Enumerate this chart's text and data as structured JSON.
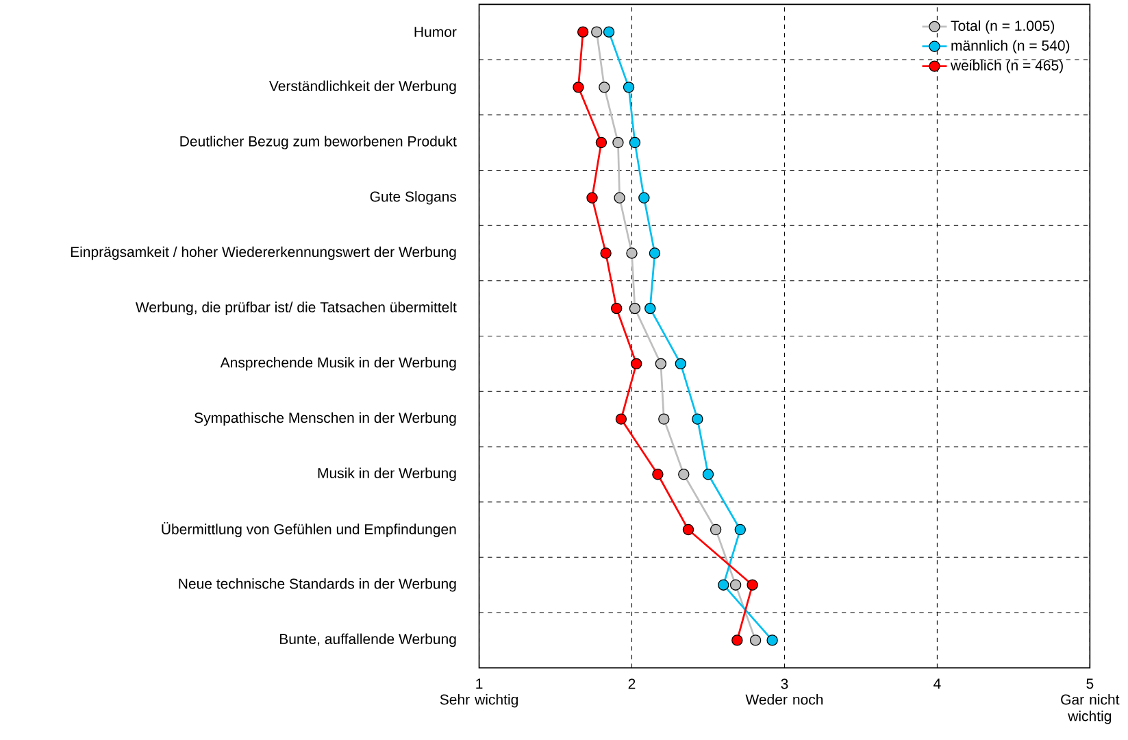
{
  "chart_data": {
    "type": "line",
    "orientation": "horizontal",
    "categories": [
      "Humor",
      "Verständlichkeit der Werbung",
      "Deutlicher Bezug zum beworbenen Produkt",
      "Gute Slogans",
      "Einprägsamkeit / hoher Wiedererkennungswert der Werbung",
      "Werbung, die prüfbar ist/ die Tatsachen übermittelt",
      "Ansprechende Musik in der Werbung",
      "Sympathische Menschen in der Werbung",
      "Musik in der Werbung",
      "Übermittlung von Gefühlen und Empfindungen",
      "Neue technische Standards in der Werbung",
      "Bunte, auffallende Werbung"
    ],
    "series": [
      {
        "name": "Total (n = 1.005)",
        "color": "#bfbfbf",
        "values": [
          1.77,
          1.82,
          1.91,
          1.92,
          2.0,
          2.02,
          2.19,
          2.21,
          2.34,
          2.55,
          2.68,
          2.81
        ]
      },
      {
        "name": "männlich (n = 540)",
        "color": "#00c0f0",
        "values": [
          1.85,
          1.98,
          2.02,
          2.08,
          2.15,
          2.12,
          2.32,
          2.43,
          2.5,
          2.71,
          2.6,
          2.92
        ]
      },
      {
        "name": "weiblich (n = 465)",
        "color": "#ff0000",
        "values": [
          1.68,
          1.65,
          1.8,
          1.74,
          1.83,
          1.9,
          2.03,
          1.93,
          2.17,
          2.37,
          2.79,
          2.69
        ]
      }
    ],
    "xlim": [
      1,
      5
    ],
    "xticks": [
      1,
      2,
      3,
      4,
      5
    ],
    "grid": true,
    "legend": "top right",
    "marker": "circle",
    "line_style": "solid",
    "annotations": [
      "Sehr wichtig",
      "Weder noch",
      "Gar nicht wichtig"
    ]
  }
}
